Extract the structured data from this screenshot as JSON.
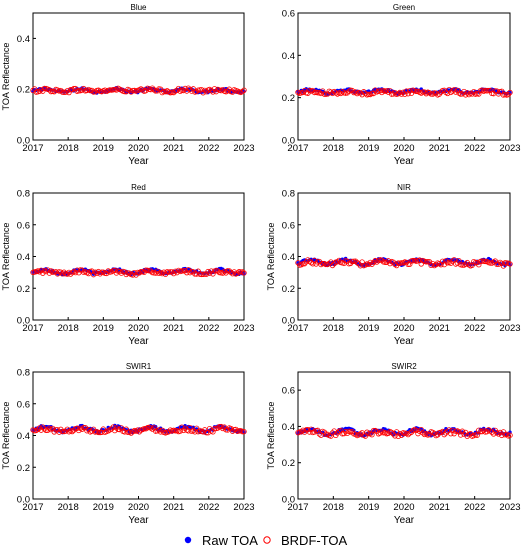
{
  "colors": {
    "raw": "#0000ff",
    "brdf": "#ff0000",
    "axis": "#000000"
  },
  "legend": {
    "placement": "bottom-center",
    "items": [
      {
        "label": "Raw TOA",
        "marker": "filled-circle",
        "color": "#0000ff"
      },
      {
        "label": "BRDF-TOA",
        "marker": "open-circle",
        "color": "#ff0000"
      }
    ]
  },
  "chart_data": [
    {
      "type": "scatter",
      "title": "Blue",
      "xlabel": "Year",
      "ylabel": "TOA Reflectance",
      "xlim": [
        2017,
        2023
      ],
      "ylim": [
        0,
        0.5
      ],
      "yticks": [
        "0.0",
        "0.2",
        "0.4"
      ],
      "xticks": [
        "2017",
        "2018",
        "2019",
        "2020",
        "2021",
        "2022",
        "2023"
      ],
      "grid": false,
      "series": [
        {
          "name": "Raw TOA",
          "mean": 0.195,
          "amplitude": 0.006,
          "noise": 0.005
        },
        {
          "name": "BRDF-TOA",
          "mean": 0.195,
          "amplitude": 0.003,
          "noise": 0.007
        }
      ]
    },
    {
      "type": "scatter",
      "title": "Green",
      "xlabel": "Year",
      "ylabel": "",
      "xlim": [
        2017,
        2023
      ],
      "ylim": [
        0,
        0.6
      ],
      "yticks": [
        "0.0",
        "0.2",
        "0.4",
        "0.6"
      ],
      "xticks": [
        "2017",
        "2018",
        "2019",
        "2020",
        "2021",
        "2022",
        "2023"
      ],
      "grid": false,
      "series": [
        {
          "name": "Raw TOA",
          "mean": 0.23,
          "amplitude": 0.008,
          "noise": 0.006
        },
        {
          "name": "BRDF-TOA",
          "mean": 0.225,
          "amplitude": 0.004,
          "noise": 0.009
        }
      ]
    },
    {
      "type": "scatter",
      "title": "Red",
      "xlabel": "Year",
      "ylabel": "TOA Reflectance",
      "xlim": [
        2017,
        2023
      ],
      "ylim": [
        0,
        0.8
      ],
      "yticks": [
        "0.0",
        "0.2",
        "0.4",
        "0.6",
        "0.8"
      ],
      "xticks": [
        "2017",
        "2018",
        "2019",
        "2020",
        "2021",
        "2022",
        "2023"
      ],
      "grid": false,
      "series": [
        {
          "name": "Raw TOA",
          "mean": 0.305,
          "amplitude": 0.012,
          "noise": 0.008
        },
        {
          "name": "BRDF-TOA",
          "mean": 0.3,
          "amplitude": 0.006,
          "noise": 0.011
        }
      ]
    },
    {
      "type": "scatter",
      "title": "NIR",
      "xlabel": "Year",
      "ylabel": "TOA Reflectance",
      "xlim": [
        2017,
        2023
      ],
      "ylim": [
        0,
        0.8
      ],
      "yticks": [
        "0.0",
        "0.2",
        "0.4",
        "0.6",
        "0.8"
      ],
      "xticks": [
        "2017",
        "2018",
        "2019",
        "2020",
        "2021",
        "2022",
        "2023"
      ],
      "grid": false,
      "series": [
        {
          "name": "Raw TOA",
          "mean": 0.365,
          "amplitude": 0.014,
          "noise": 0.009
        },
        {
          "name": "BRDF-TOA",
          "mean": 0.36,
          "amplitude": 0.007,
          "noise": 0.013
        }
      ]
    },
    {
      "type": "scatter",
      "title": "SWIR1",
      "xlabel": "Year",
      "ylabel": "TOA Reflectance",
      "xlim": [
        2017,
        2023
      ],
      "ylim": [
        0,
        0.8
      ],
      "yticks": [
        "0.0",
        "0.2",
        "0.4",
        "0.6",
        "0.8"
      ],
      "xticks": [
        "2017",
        "2018",
        "2019",
        "2020",
        "2021",
        "2022",
        "2023"
      ],
      "grid": false,
      "series": [
        {
          "name": "Raw TOA",
          "mean": 0.44,
          "amplitude": 0.016,
          "noise": 0.009
        },
        {
          "name": "BRDF-TOA",
          "mean": 0.435,
          "amplitude": 0.008,
          "noise": 0.013
        }
      ]
    },
    {
      "type": "scatter",
      "title": "SWIR2",
      "xlabel": "Year",
      "ylabel": "TOA Reflectance",
      "xlim": [
        2017,
        2023
      ],
      "ylim": [
        0,
        0.7
      ],
      "yticks": [
        "0.0",
        "0.2",
        "0.4",
        "0.6"
      ],
      "xticks": [
        "2017",
        "2018",
        "2019",
        "2020",
        "2021",
        "2022",
        "2023"
      ],
      "grid": false,
      "series": [
        {
          "name": "Raw TOA",
          "mean": 0.37,
          "amplitude": 0.016,
          "noise": 0.009
        },
        {
          "name": "BRDF-TOA",
          "mean": 0.365,
          "amplitude": 0.008,
          "noise": 0.013
        }
      ]
    }
  ]
}
